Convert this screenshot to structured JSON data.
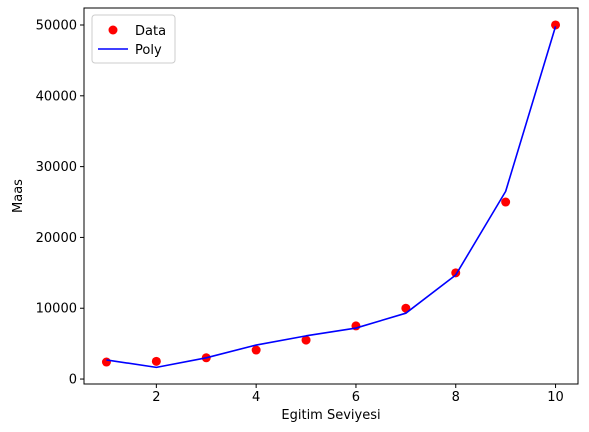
{
  "chart_data": {
    "type": "scatter",
    "xlabel": "Egitim Seviyesi",
    "ylabel": "Maas",
    "xlim": [
      0.55,
      10.45
    ],
    "ylim": [
      -700,
      52400
    ],
    "xticks": [
      2,
      4,
      6,
      8,
      10
    ],
    "yticks": [
      0,
      10000,
      20000,
      30000,
      40000,
      50000
    ],
    "grid": false,
    "legend_position": "top-left",
    "series": [
      {
        "name": "Data",
        "kind": "scatter",
        "color": "#ff0000",
        "x": [
          1,
          2,
          3,
          4,
          5,
          6,
          7,
          8,
          9,
          10
        ],
        "y": [
          2400,
          2500,
          3000,
          4100,
          5500,
          7500,
          10000,
          15000,
          25000,
          50000
        ]
      },
      {
        "name": "Poly",
        "kind": "line",
        "color": "#0000ff",
        "x": [
          1,
          2,
          3,
          4,
          5,
          6,
          7,
          8,
          9,
          10
        ],
        "y": [
          2700,
          1650,
          3000,
          4800,
          6100,
          7200,
          9300,
          14700,
          26500,
          49800
        ]
      }
    ]
  }
}
